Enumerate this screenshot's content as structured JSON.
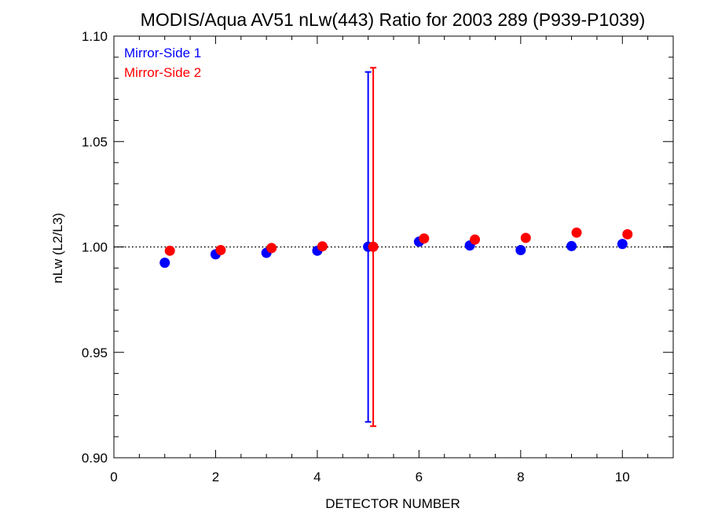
{
  "chart_data": {
    "type": "scatter",
    "title": "MODIS/Aqua AV51 nLw(443) Ratio for 2003 289 (P939-P1039)",
    "xlabel": "DETECTOR NUMBER",
    "ylabel": "nLw (L2/L3)",
    "xlim": [
      0,
      11
    ],
    "ylim": [
      0.9,
      1.1
    ],
    "xticks": [
      0,
      2,
      4,
      6,
      8,
      10
    ],
    "xtick_labels": [
      "0",
      "2",
      "4",
      "6",
      "8",
      "10"
    ],
    "yticks": [
      0.9,
      0.95,
      1.0,
      1.05,
      1.1
    ],
    "ytick_labels": [
      "0.90",
      "0.95",
      "1.00",
      "1.05",
      "1.10"
    ],
    "reference_line": 1.0,
    "legend_position": "top-left",
    "series": [
      {
        "name": "Mirror-Side 1",
        "color": "#0000ff",
        "x": [
          1,
          2,
          3,
          4,
          5,
          6,
          7,
          8,
          9,
          10
        ],
        "y": [
          0.9925,
          0.9965,
          0.9972,
          0.9982,
          1.0001,
          1.0025,
          1.0007,
          0.9985,
          1.0004,
          1.0014
        ],
        "error_bars": [
          {
            "x": 5,
            "low": 0.917,
            "high": 1.083
          }
        ]
      },
      {
        "name": "Mirror-Side 2",
        "color": "#ff0000",
        "x": [
          1.1,
          2.1,
          3.1,
          4.1,
          5.1,
          6.1,
          7.1,
          8.1,
          9.1,
          10.1
        ],
        "y": [
          0.9982,
          0.9985,
          0.9995,
          1.0003,
          1.0001,
          1.004,
          1.0035,
          1.0043,
          1.0068,
          1.006
        ],
        "error_bars": [
          {
            "x": 5.1,
            "low": 0.915,
            "high": 1.085
          }
        ]
      }
    ]
  }
}
